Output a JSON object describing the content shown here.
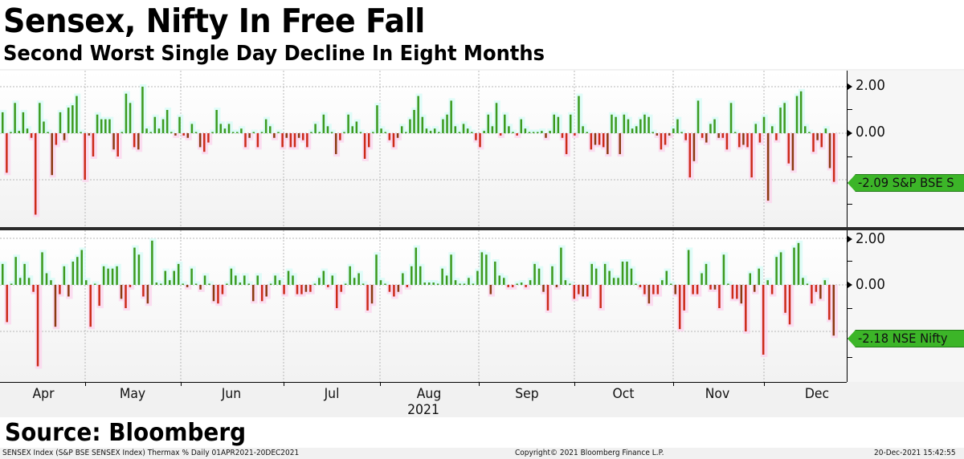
{
  "header": {
    "title": "Sensex, Nifty In Free Fall",
    "subtitle": "Second Worst Single Day Decline In Eight Months"
  },
  "panels": [
    {
      "name": "S&P BSE SENSEX",
      "y_ticks": [
        "2.00",
        "0.00"
      ],
      "last_value_label": "-2.09 S&P BSE S"
    },
    {
      "name": "NSE Nifty",
      "y_ticks": [
        "2.00",
        "0.00"
      ],
      "last_value_label": "-2.18 NSE Nifty"
    }
  ],
  "xaxis": {
    "months": [
      "Apr",
      "May",
      "Jun",
      "Jul",
      "Aug",
      "Sep",
      "Oct",
      "Nov",
      "Dec"
    ],
    "year": "2021"
  },
  "source": "Source: Bloomberg",
  "footer": {
    "left": "SENSEX Index (S&P BSE SENSEX Index) Thermax %  Daily 01APR2021-20DEC2021",
    "center": "Copyright© 2021 Bloomberg Finance L.P.",
    "right": "20-Dec-2021 15:42:55"
  },
  "colors": {
    "up": "#3c9a1e",
    "down": "#cc2a18",
    "down_dark": "#8b3a10",
    "tag": "#3cb528",
    "grid": "#b8b8b8"
  },
  "chart_data": [
    {
      "type": "bar",
      "title": "S&P BSE SENSEX daily % change",
      "xlabel": "2021",
      "ylabel": "%",
      "ylim": [
        -3.5,
        2.6
      ],
      "y_ticks": [
        2.0,
        0.0
      ],
      "grid": true,
      "x_range": "01APR2021-20DEC2021",
      "last_value": -2.09,
      "values": [
        0.9,
        -1.7,
        0.0,
        1.3,
        0.1,
        0.9,
        0.2,
        -0.2,
        -3.5,
        1.3,
        0.5,
        0.0,
        -1.8,
        -0.5,
        0.9,
        -0.3,
        1.1,
        1.2,
        1.6,
        0.0,
        -2.0,
        -0.1,
        -1.0,
        0.8,
        0.6,
        0.6,
        0.6,
        -0.7,
        -1.0,
        0.0,
        1.7,
        1.3,
        -0.6,
        -0.7,
        2.0,
        0.2,
        0.0,
        0.7,
        0.2,
        0.6,
        1.0,
        0.0,
        -0.1,
        0.7,
        -0.1,
        -0.2,
        0.4,
        0.0,
        -0.6,
        -0.8,
        -0.4,
        0.0,
        1.0,
        0.4,
        0.2,
        0.4,
        0.0,
        0.0,
        0.2,
        -0.6,
        -0.2,
        0.0,
        -0.6,
        0.0,
        0.6,
        0.3,
        -0.2,
        0.0,
        -0.6,
        -0.2,
        -0.6,
        -0.6,
        -0.2,
        -0.3,
        -0.6,
        0.0,
        0.4,
        0.0,
        0.8,
        0.3,
        0.0,
        -0.9,
        -0.3,
        0.0,
        0.8,
        0.3,
        0.5,
        0.0,
        -1.1,
        -0.6,
        0.0,
        1.2,
        0.2,
        0.0,
        -0.3,
        -0.6,
        -0.2,
        0.3,
        0.0,
        0.6,
        1.0,
        1.6,
        0.7,
        0.2,
        0.1,
        0.2,
        0.0,
        0.6,
        0.8,
        1.4,
        0.3,
        0.0,
        0.4,
        0.2,
        0.0,
        -0.3,
        -0.6,
        0.1,
        0.8,
        0.3,
        1.3,
        -0.1,
        0.8,
        0.3,
        0.0,
        -0.1,
        0.6,
        0.2,
        0.0,
        0.0,
        0.0,
        0.1,
        -0.2,
        0.1,
        0.8,
        0.7,
        -0.2,
        -0.9,
        0.8,
        -0.1,
        1.6,
        0.3,
        0.0,
        -0.7,
        -0.5,
        -0.5,
        -0.6,
        -0.9,
        0.8,
        0.7,
        -0.9,
        0.8,
        0.6,
        0.2,
        0.3,
        0.6,
        0.8,
        0.7,
        0.0,
        -0.1,
        -0.7,
        -0.5,
        -0.1,
        0.2,
        0.6,
        0.0,
        -0.3,
        -1.9,
        -1.2,
        1.4,
        -0.2,
        -0.4,
        0.4,
        0.6,
        -0.2,
        -0.2,
        -0.7,
        1.3,
        0.0,
        -0.6,
        -0.5,
        -0.6,
        -1.9,
        0.4,
        -0.4,
        0.7,
        -2.9,
        0.3,
        -0.3,
        1.1,
        1.3,
        -1.3,
        -1.6,
        1.6,
        1.8,
        0.3,
        0.0,
        -0.8,
        -0.3,
        -0.6,
        0.2,
        -1.5,
        -2.09
      ]
    },
    {
      "type": "bar",
      "title": "NSE Nifty daily % change",
      "xlabel": "2021",
      "ylabel": "%",
      "ylim": [
        -3.5,
        2.6
      ],
      "y_ticks": [
        2.0,
        0.0
      ],
      "grid": true,
      "x_range": "01APR2021-20DEC2021",
      "last_value": -2.18,
      "values": [
        0.9,
        -1.6,
        0.0,
        1.2,
        0.3,
        0.9,
        0.3,
        -0.3,
        -3.5,
        1.4,
        0.5,
        0.2,
        -1.8,
        -0.4,
        0.8,
        -0.5,
        1.0,
        1.2,
        1.5,
        0.2,
        -1.8,
        0.0,
        -0.9,
        0.8,
        0.7,
        0.7,
        0.8,
        -0.6,
        -1.0,
        -0.1,
        1.6,
        1.3,
        -0.5,
        -0.8,
        1.9,
        0.1,
        0.0,
        0.6,
        0.2,
        0.6,
        0.9,
        0.0,
        -0.1,
        0.7,
        0.0,
        -0.2,
        0.4,
        0.0,
        -0.7,
        -0.8,
        -0.4,
        0.0,
        0.7,
        0.4,
        0.1,
        0.4,
        0.0,
        -0.7,
        0.4,
        -0.7,
        -0.5,
        0.0,
        0.4,
        0.2,
        -0.4,
        0.6,
        0.4,
        -0.4,
        -0.4,
        -0.3,
        -0.3,
        0.0,
        0.3,
        0.6,
        -0.1,
        0.4,
        -1.0,
        -0.3,
        0.0,
        0.8,
        0.3,
        0.5,
        0.0,
        -1.1,
        -0.8,
        1.3,
        0.2,
        0.0,
        -0.3,
        -0.5,
        -0.3,
        0.5,
        -0.1,
        0.8,
        1.6,
        0.8,
        0.1,
        0.1,
        0.1,
        0.0,
        0.7,
        0.4,
        1.3,
        0.2,
        0.0,
        0.0,
        0.3,
        0.0,
        0.6,
        1.4,
        1.3,
        -0.4,
        1.0,
        0.4,
        0.3,
        -0.1,
        -0.1,
        0.0,
        0.1,
        -0.1,
        0.2,
        0.9,
        0.7,
        -0.3,
        -1.1,
        0.8,
        -0.1,
        1.6,
        0.2,
        0.0,
        -0.6,
        -0.4,
        -0.5,
        -0.5,
        0.9,
        0.7,
        -1.0,
        0.9,
        0.6,
        0.3,
        0.3,
        1.0,
        1.0,
        0.7,
        0.0,
        -0.1,
        -0.4,
        -0.8,
        -0.4,
        -0.4,
        0.2,
        0.6,
        0.0,
        -0.4,
        -1.9,
        -1.1,
        1.5,
        -0.4,
        -0.4,
        0.5,
        0.9,
        -0.2,
        -0.2,
        -1.0,
        1.3,
        0.0,
        -0.6,
        -0.6,
        -0.8,
        -2.0,
        0.5,
        -0.3,
        0.7,
        -3.0,
        0.2,
        -0.4,
        1.2,
        1.4,
        -1.2,
        -1.7,
        1.6,
        1.8,
        0.3,
        0.0,
        -0.8,
        -0.3,
        -0.6,
        0.2,
        -1.5,
        -2.18
      ]
    }
  ]
}
